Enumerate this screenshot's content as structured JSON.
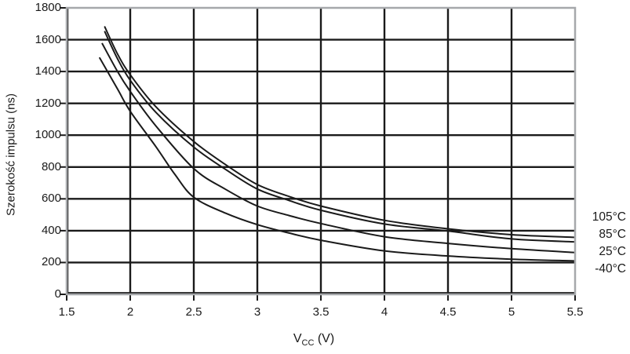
{
  "chart_data": {
    "type": "line",
    "title": "",
    "ylabel": "Szerokość impulsu (ns)",
    "xlabel": "Vcc (V)",
    "xlabel_parts": {
      "main": "V",
      "sub": "CC",
      "unit": "(V)"
    },
    "xlim": [
      1.5,
      5.5
    ],
    "ylim": [
      0,
      1800
    ],
    "xticks": [
      1.5,
      2,
      2.5,
      3,
      3.5,
      4,
      4.5,
      5,
      5.5
    ],
    "xtick_labels": [
      "1.5",
      "2",
      "2.5",
      "3",
      "3.5",
      "4",
      "4.5",
      "5",
      "5.5"
    ],
    "yticks": [
      0,
      200,
      400,
      600,
      800,
      1000,
      1200,
      1400,
      1600,
      1800
    ],
    "ytick_labels": [
      "0",
      "200",
      "400",
      "600",
      "800",
      "1000",
      "1200",
      "1400",
      "1600",
      "1800"
    ],
    "grid": true,
    "legend_position": "right",
    "series": [
      {
        "name": "105°C",
        "points": [
          [
            1.8,
            1680
          ],
          [
            1.9,
            1510
          ],
          [
            2.0,
            1380
          ],
          [
            2.2,
            1180
          ],
          [
            2.5,
            960
          ],
          [
            2.75,
            815
          ],
          [
            3.0,
            690
          ],
          [
            3.25,
            615
          ],
          [
            3.5,
            555
          ],
          [
            4.0,
            465
          ],
          [
            4.5,
            412
          ],
          [
            5.0,
            375
          ],
          [
            5.5,
            358
          ]
        ]
      },
      {
        "name": "85°C",
        "points": [
          [
            1.8,
            1650
          ],
          [
            1.9,
            1480
          ],
          [
            2.0,
            1345
          ],
          [
            2.2,
            1145
          ],
          [
            2.5,
            925
          ],
          [
            2.75,
            785
          ],
          [
            3.0,
            662
          ],
          [
            3.25,
            590
          ],
          [
            3.5,
            528
          ],
          [
            4.0,
            442
          ],
          [
            4.5,
            398
          ],
          [
            5.0,
            348
          ],
          [
            5.5,
            330
          ]
        ]
      },
      {
        "name": "25°C",
        "points": [
          [
            1.78,
            1575
          ],
          [
            1.9,
            1400
          ],
          [
            2.0,
            1275
          ],
          [
            2.2,
            1060
          ],
          [
            2.5,
            790
          ],
          [
            2.75,
            660
          ],
          [
            3.0,
            555
          ],
          [
            3.25,
            495
          ],
          [
            3.5,
            445
          ],
          [
            4.0,
            362
          ],
          [
            4.5,
            320
          ],
          [
            5.0,
            287
          ],
          [
            5.5,
            263
          ]
        ]
      },
      {
        "name": "-40°C",
        "points": [
          [
            1.76,
            1485
          ],
          [
            1.9,
            1290
          ],
          [
            2.0,
            1150
          ],
          [
            2.2,
            930
          ],
          [
            2.35,
            755
          ],
          [
            2.5,
            610
          ],
          [
            2.75,
            510
          ],
          [
            3.0,
            438
          ],
          [
            3.25,
            385
          ],
          [
            3.5,
            340
          ],
          [
            4.0,
            273
          ],
          [
            4.5,
            241
          ],
          [
            5.0,
            221
          ],
          [
            5.5,
            210
          ]
        ]
      }
    ]
  },
  "colors": {
    "curve": "#1a1a1a",
    "grid": "#1a1a1a",
    "border": "#a6a8ab",
    "text": "#1a1a1a",
    "background": "#ffffff"
  }
}
